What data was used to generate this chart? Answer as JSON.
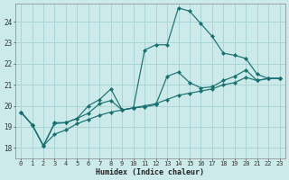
{
  "xlabel": "Humidex (Indice chaleur)",
  "background_color": "#cceaea",
  "grid_color": "#aad4d4",
  "line_color": "#1a7070",
  "xlim": [
    -0.5,
    23.5
  ],
  "ylim": [
    17.5,
    24.85
  ],
  "yticks": [
    18,
    19,
    20,
    21,
    22,
    23,
    24
  ],
  "xticks": [
    0,
    1,
    2,
    3,
    4,
    5,
    6,
    7,
    8,
    9,
    10,
    11,
    12,
    13,
    14,
    15,
    16,
    17,
    18,
    19,
    20,
    21,
    22,
    23
  ],
  "line1_y": [
    19.7,
    19.1,
    18.1,
    19.2,
    19.2,
    19.4,
    20.0,
    20.3,
    20.8,
    19.8,
    19.9,
    22.65,
    22.9,
    22.9,
    24.65,
    24.5,
    23.9,
    23.3,
    22.5,
    22.4,
    22.25,
    21.5,
    21.3,
    21.3
  ],
  "line2_y": [
    19.7,
    19.1,
    18.1,
    19.15,
    19.2,
    19.4,
    19.65,
    20.1,
    20.25,
    19.8,
    19.9,
    19.95,
    20.05,
    21.4,
    21.6,
    21.1,
    20.85,
    20.9,
    21.2,
    21.4,
    21.7,
    21.2,
    21.3,
    21.3
  ],
  "line3_y": [
    19.7,
    19.1,
    18.1,
    18.65,
    18.85,
    19.15,
    19.35,
    19.55,
    19.7,
    19.8,
    19.9,
    20.0,
    20.1,
    20.3,
    20.5,
    20.6,
    20.7,
    20.8,
    21.0,
    21.1,
    21.35,
    21.2,
    21.3,
    21.3
  ]
}
